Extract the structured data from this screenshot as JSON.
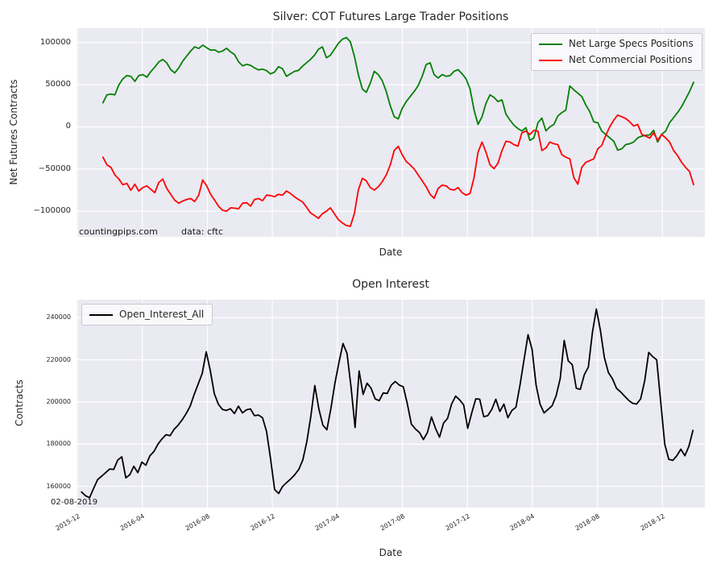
{
  "figure": {
    "background": "#ffffff",
    "axes_background": "#eaeaf2",
    "grid_color": "#ffffff",
    "text_color": "#262626"
  },
  "chart_data": [
    {
      "type": "line",
      "title": "Silver: COT Futures Large Trader Positions",
      "xlabel": "Date",
      "ylabel": "Net Futures Contracts",
      "ylim": [
        -130500,
        117100
      ],
      "yticks": [
        100000,
        50000,
        0,
        -50000,
        -100000
      ],
      "ytick_labels": [
        "100000",
        "50000",
        "0",
        "−50000",
        "−100000"
      ],
      "grid": true,
      "legend_position": "upper right",
      "annotations": [
        "countingpips.com",
        "data: cftc"
      ],
      "legend": [
        {
          "label": "Net Large Specs Positions",
          "color": "#008000"
        },
        {
          "label": "Net Commercial Positions",
          "color": "#ff0000"
        }
      ],
      "x_start_frac": 0.042,
      "x_end_frac": 0.982,
      "series": [
        {
          "name": "Net Large Specs Positions",
          "color": "#008000",
          "values": [
            28600,
            38000,
            39000,
            38000,
            50000,
            57000,
            61000,
            60000,
            54000,
            61000,
            62000,
            59000,
            65700,
            71000,
            77000,
            80000,
            76000,
            68000,
            64000,
            70000,
            78000,
            84000,
            90000,
            95000,
            93000,
            97000,
            94000,
            91000,
            91400,
            88600,
            90000,
            93300,
            89000,
            85700,
            77100,
            72400,
            74300,
            73000,
            70000,
            67600,
            68500,
            66700,
            62900,
            65000,
            71400,
            69000,
            60000,
            63000,
            66000,
            67000,
            72000,
            76000,
            80000,
            85000,
            92000,
            95000,
            82000,
            85000,
            92000,
            99000,
            104000,
            106000,
            101000,
            84000,
            62000,
            45000,
            41000,
            52000,
            66000,
            62000,
            55000,
            42000,
            25000,
            12000,
            9500,
            22000,
            30000,
            36000,
            42000,
            49000,
            60000,
            74000,
            76000,
            62000,
            58000,
            62000,
            60000,
            61000,
            66000,
            68000,
            63000,
            57000,
            45000,
            20000,
            3000,
            12000,
            28000,
            38000,
            35000,
            30000,
            32000,
            15000,
            8000,
            2000,
            -2000,
            -4800,
            -1000,
            -16000,
            -13000,
            5000,
            10500,
            -4800,
            0,
            3000,
            13000,
            17000,
            20000,
            48600,
            44000,
            40000,
            36000,
            26000,
            18000,
            6000,
            5000,
            -5000,
            -9000,
            -13000,
            -17000,
            -27600,
            -26000,
            -21000,
            -20000,
            -18000,
            -13000,
            -11000,
            -10000,
            -9500,
            -4000,
            -18000,
            -9000,
            -5000,
            5000,
            11000,
            17000,
            24000,
            33000,
            42000,
            53000
          ]
        },
        {
          "name": "Net Commercial Positions",
          "color": "#ff0000",
          "values": [
            -36000,
            -45000,
            -48000,
            -57000,
            -62000,
            -68600,
            -67000,
            -75200,
            -68000,
            -76200,
            -72000,
            -70000,
            -74000,
            -78100,
            -66000,
            -61900,
            -73000,
            -80000,
            -87000,
            -90500,
            -88000,
            -86000,
            -85000,
            -88500,
            -81000,
            -63000,
            -70000,
            -80000,
            -87000,
            -94300,
            -99000,
            -100000,
            -96000,
            -96500,
            -97100,
            -90500,
            -90000,
            -94000,
            -86000,
            -85000,
            -87600,
            -81000,
            -81500,
            -82900,
            -80000,
            -81000,
            -76000,
            -79000,
            -83000,
            -86000,
            -89000,
            -95000,
            -102000,
            -105000,
            -108500,
            -103000,
            -100000,
            -96000,
            -103000,
            -110000,
            -114000,
            -117000,
            -118000,
            -103000,
            -75000,
            -61000,
            -64000,
            -72000,
            -75000,
            -71000,
            -65000,
            -57000,
            -45000,
            -28000,
            -23000,
            -33000,
            -41000,
            -45000,
            -50000,
            -57000,
            -64000,
            -71000,
            -80000,
            -84700,
            -73000,
            -69000,
            -70000,
            -74000,
            -75000,
            -72000,
            -78000,
            -81000,
            -79000,
            -60000,
            -30000,
            -18000,
            -30000,
            -45000,
            -49500,
            -43000,
            -28000,
            -17000,
            -18000,
            -21000,
            -22900,
            -7000,
            -5000,
            -9000,
            -4000,
            -5000,
            -28000,
            -25000,
            -18000,
            -20000,
            -21000,
            -33000,
            -36000,
            -38000,
            -60000,
            -68000,
            -48000,
            -42000,
            -40000,
            -38000,
            -26000,
            -22000,
            -10000,
            0,
            8000,
            14000,
            12000,
            10000,
            6000,
            1000,
            3000,
            -8600,
            -11000,
            -13300,
            -7000,
            -16000,
            -9000,
            -13000,
            -18000,
            -28000,
            -34000,
            -42000,
            -48000,
            -53000,
            -68600
          ]
        }
      ]
    },
    {
      "type": "line",
      "title": "Open Interest",
      "xlabel": "Date",
      "ylabel": "Contracts",
      "ylim": [
        149900,
        248500
      ],
      "yticks": [
        240000,
        220000,
        200000,
        180000,
        160000
      ],
      "ytick_labels": [
        "240000",
        "220000",
        "200000",
        "180000",
        "160000"
      ],
      "x_tick_labels": [
        "2015-12",
        "2016-04",
        "2016-08",
        "2016-12",
        "2017-04",
        "2017-08",
        "2017-12",
        "2018-04",
        "2018-08",
        "2018-12"
      ],
      "grid": true,
      "legend_position": "upper left",
      "annotation": "02-08-2019",
      "legend": [
        {
          "label": "Open_Interest_All",
          "color": "#000000"
        }
      ],
      "x_start_frac": 0.008,
      "x_end_frac": 0.981,
      "series": [
        {
          "name": "Open_Interest_All",
          "color": "#000000",
          "values": [
            157300,
            155500,
            154600,
            159000,
            163200,
            164800,
            166500,
            168200,
            168000,
            172500,
            174000,
            164000,
            165500,
            169500,
            166500,
            171500,
            170000,
            174500,
            176500,
            180000,
            182500,
            184500,
            184000,
            187000,
            189000,
            191500,
            194500,
            198000,
            203500,
            208500,
            213500,
            223800,
            215000,
            204000,
            199000,
            196500,
            196000,
            196800,
            194500,
            198000,
            194800,
            196300,
            196700,
            193500,
            193800,
            192500,
            186000,
            173000,
            158500,
            156600,
            160000,
            161800,
            163500,
            165500,
            168000,
            172500,
            181000,
            193000,
            207800,
            196700,
            189000,
            186800,
            197000,
            209000,
            218800,
            227700,
            223000,
            207000,
            187900,
            214700,
            203600,
            208900,
            206500,
            201500,
            200600,
            204300,
            204000,
            208000,
            209700,
            208000,
            207200,
            199000,
            189500,
            187200,
            185500,
            182200,
            185500,
            192900,
            187500,
            183300,
            190000,
            192200,
            199000,
            202800,
            201000,
            198600,
            187500,
            194800,
            201500,
            201300,
            193000,
            193500,
            196500,
            201300,
            195500,
            199000,
            192500,
            196000,
            197500,
            208000,
            220000,
            231900,
            225000,
            208000,
            199000,
            194800,
            196500,
            198200,
            203000,
            211000,
            229200,
            219500,
            217700,
            206500,
            206000,
            213000,
            216600,
            233000,
            244100,
            234000,
            221000,
            213900,
            211000,
            206500,
            204800,
            202800,
            200800,
            199400,
            199000,
            201500,
            210000,
            223500,
            221500,
            220000,
            200000,
            180000,
            172800,
            172300,
            174500,
            177600,
            174500,
            179000,
            186500
          ]
        }
      ]
    }
  ]
}
